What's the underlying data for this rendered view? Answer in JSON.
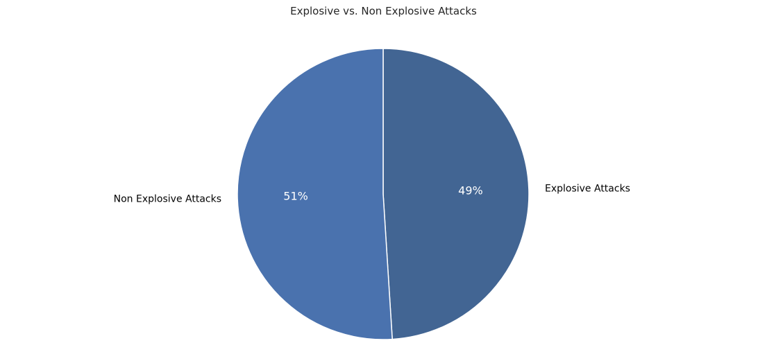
{
  "chart_data": {
    "type": "pie",
    "title": "Explosive vs. Non Explosive Attacks",
    "slices": [
      {
        "label": "Explosive Attacks",
        "value": 49,
        "pct_label": "49%",
        "color": "#426593"
      },
      {
        "label": "Non Explosive Attacks",
        "value": 51,
        "pct_label": "51%",
        "color": "#4a72ae"
      }
    ],
    "start_angle_deg": 90,
    "direction": "clockwise",
    "slice_edge_color": "#ffffff"
  }
}
